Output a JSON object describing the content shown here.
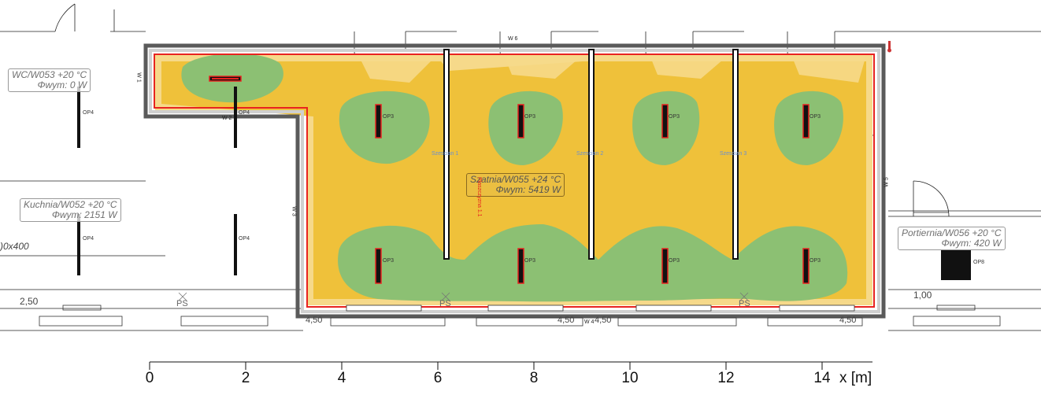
{
  "rooms": {
    "wc": {
      "name": "WC/W053 +20 °C",
      "power": "Φwym: 0 W"
    },
    "kuchnia": {
      "name": "Kuchnia/W052 +20 °C",
      "power": "Φwym: 2151 W"
    },
    "szatnia": {
      "name": "Szatnia/W055 +24 °C",
      "power": "Φwym: 5419 W"
    },
    "portiernia": {
      "name": "Portiernia/W056 +20 °C",
      "power": "Φwym: 420 W"
    }
  },
  "walls": [
    "W 1",
    "W 2",
    "W 3",
    "W 4",
    "W 5",
    "W 6"
  ],
  "heaters": {
    "op3": "OP3",
    "op4": "OP4",
    "op8": "OP8"
  },
  "cubicles": [
    "Szescian 1",
    "Szescian 2",
    "Szescian 3"
  ],
  "red_label": "Płaszczyzna 1.1",
  "ps": "PS",
  "misc": {
    "door_size": ")0x400",
    "left_height": "2,50",
    "right_height": "1,00",
    "sill": "4,50"
  },
  "axis": {
    "ticks": [
      "0",
      "2",
      "4",
      "6",
      "8",
      "10",
      "12",
      "14"
    ],
    "unit": "x [m]"
  },
  "colors": {
    "green": "#8cc073",
    "yellow": "#efc13a",
    "light": "#f7dc8a",
    "wall": "#5a5a5a",
    "plane": "#e8231f"
  }
}
